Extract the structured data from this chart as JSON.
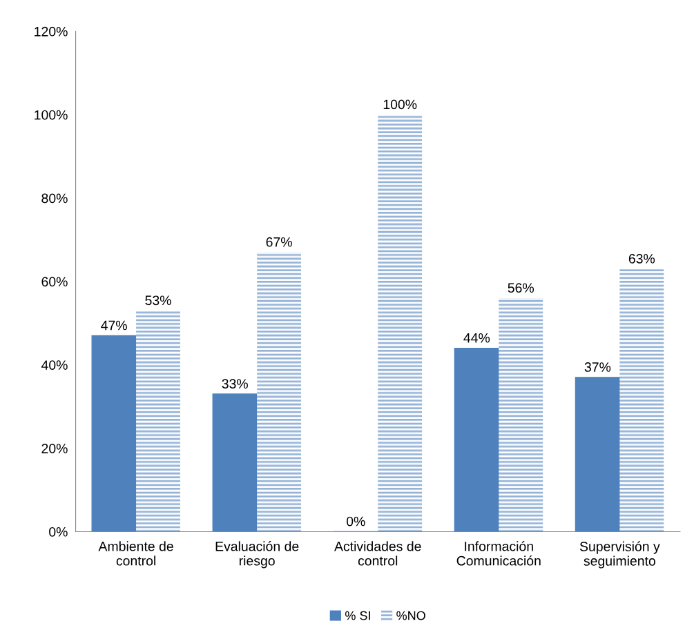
{
  "chart_data": {
    "type": "bar",
    "categories": [
      "Ambiente de\ncontrol",
      "Evaluación de\nriesgo",
      "Actividades de\ncontrol",
      "Información\nComunicación",
      "Supervisión y\nseguimiento"
    ],
    "series": [
      {
        "name": "% SI",
        "color": "#4f81bd",
        "values": [
          47,
          33,
          0,
          44,
          37
        ],
        "value_labels": [
          "47%",
          "33%",
          "0%",
          "44%",
          "37%"
        ]
      },
      {
        "name": "%NO",
        "color": "#95b3d7",
        "values": [
          53,
          67,
          100,
          56,
          63
        ],
        "value_labels": [
          "53%",
          "67%",
          "100%",
          "56%",
          "63%"
        ]
      }
    ],
    "ylim": [
      0,
      120
    ],
    "yticks": [
      {
        "value": 0,
        "label": "0%"
      },
      {
        "value": 20,
        "label": "20%"
      },
      {
        "value": 40,
        "label": "40%"
      },
      {
        "value": 60,
        "label": "60%"
      },
      {
        "value": 80,
        "label": "80%"
      },
      {
        "value": 100,
        "label": "100%"
      },
      {
        "value": 120,
        "label": "120%"
      }
    ],
    "grid": false,
    "legend": "bottom"
  }
}
